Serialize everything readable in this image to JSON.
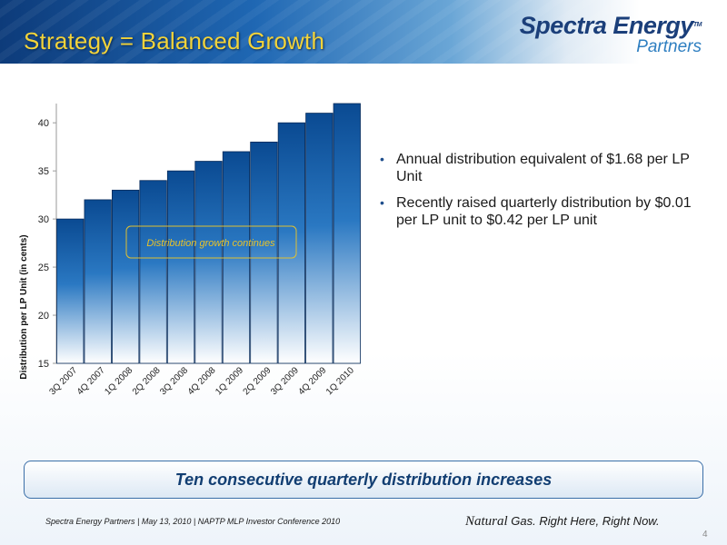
{
  "slide": {
    "title": "Strategy = Balanced Growth",
    "logo": {
      "main": "Spectra Energy",
      "tm": "TM",
      "sub": "Partners"
    },
    "bullets": [
      "Annual distribution equivalent of $1.68 per LP Unit",
      "Recently raised quarterly distribution by $0.01 per LP unit to $0.42 per LP unit"
    ],
    "callout": "Ten consecutive quarterly distribution increases",
    "footer": "Spectra Energy Partners | May 13, 2010 | NAPTP MLP Investor  Conference 2010",
    "tagline": {
      "natural": "Natural",
      "rest": " Gas.  Right Here, Right Now."
    },
    "page_number": "4"
  },
  "chart_data": {
    "type": "bar",
    "categories": [
      "3Q 2007",
      "4Q 2007",
      "1Q 2008",
      "2Q 2008",
      "3Q 2008",
      "4Q 2008",
      "1Q 2009",
      "2Q 2009",
      "3Q 2009",
      "4Q 2009",
      "1Q 2010"
    ],
    "values": [
      30,
      32,
      33,
      34,
      35,
      36,
      37,
      38,
      40,
      41,
      42
    ],
    "title": "",
    "xlabel": "",
    "ylabel": "Distribution per LP Unit (in cents)",
    "ylim": [
      15,
      42
    ],
    "yticks": [
      15,
      20,
      25,
      30,
      35,
      40
    ],
    "grid": false,
    "annotation": "Distribution growth continues",
    "colors": {
      "bar_top": "#0a4a92",
      "bar_bottom": "#ffffff",
      "annotation_border": "#e0c030",
      "annotation_text": "#e8c22a"
    }
  }
}
